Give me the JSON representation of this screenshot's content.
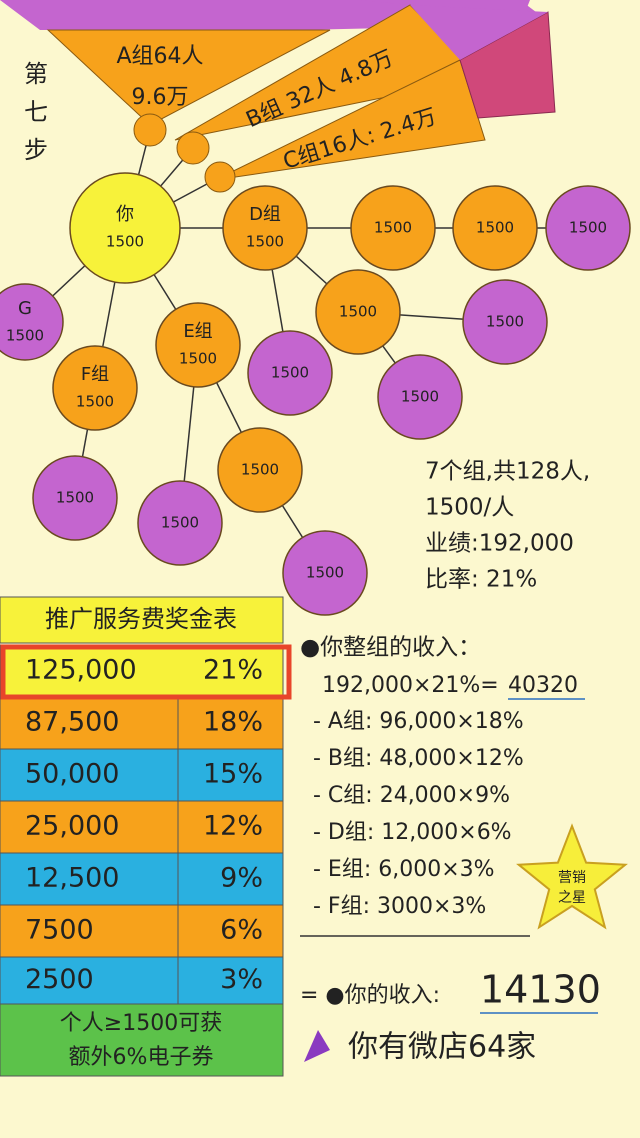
{
  "step_label": [
    "第",
    "七",
    "步"
  ],
  "fan": [
    [
      "A组64人",
      "9.6万"
    ],
    [
      "B组 32人 4.8万"
    ],
    [
      "C组16人: 2.4万"
    ]
  ],
  "nodes": [
    {
      "name": "你",
      "value": "1500"
    },
    {
      "name": "D组",
      "value": "1500"
    },
    {
      "value": "1500"
    },
    {
      "value": "1500"
    },
    {
      "value": "1500"
    },
    {
      "value": "1500"
    },
    {
      "value": "1500"
    },
    {
      "value": "1500"
    },
    {
      "value": "1500"
    },
    {
      "name": "E组",
      "value": "1500"
    },
    {
      "value": "1500"
    },
    {
      "value": "1500"
    },
    {
      "value": "1500"
    },
    {
      "name": "F组",
      "value": "1500"
    },
    {
      "value": "1500"
    },
    {
      "name": "G",
      "value": "1500"
    }
  ],
  "summary": [
    "7个组,共128人,",
    "1500/人",
    "业绩:192,000",
    "比率:  21%"
  ],
  "table": {
    "title": "推广服务费奖金表",
    "rows": [
      [
        "125,000",
        "21%"
      ],
      [
        "87,500",
        "18%"
      ],
      [
        "50,000",
        "15%"
      ],
      [
        "25,000",
        "12%"
      ],
      [
        "12,500",
        "9%"
      ],
      [
        "7500",
        "6%"
      ],
      [
        "2500",
        "3%"
      ]
    ],
    "footer": [
      "个人≥1500可获",
      "额外6%电子券"
    ]
  },
  "income": {
    "heading": "●你整组的收入：",
    "formula": "192,000×21%=",
    "formula_result": "40320",
    "items": [
      "- A组: 96,000×18%",
      "- B组: 48,000×12%",
      "- C组: 24,000×9%",
      "- D组: 12,000×6%",
      "- E组: 6,000×3%",
      "- F组: 3000×3%"
    ],
    "total_label": "= ●你的收入:",
    "total": "14130",
    "shops": "你有微店64家"
  },
  "badge": [
    "营销",
    "之星"
  ]
}
